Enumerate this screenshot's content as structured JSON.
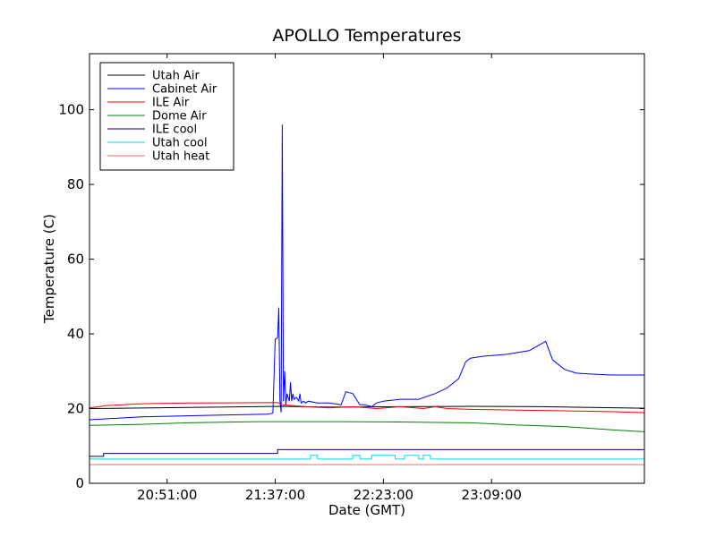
{
  "chart_data": {
    "type": "line",
    "title": "APOLLO Temperatures",
    "xlabel": "Date (GMT)",
    "ylabel": "Temperature (C)",
    "ylim": [
      0,
      115
    ],
    "xlim": [
      "20:18:00",
      "24:14:00"
    ],
    "xticks": [
      "20:51:00",
      "21:37:00",
      "22:23:00",
      "23:09:00"
    ],
    "yticks": [
      0,
      20,
      40,
      60,
      80,
      100
    ],
    "grid": false,
    "legend_position": "top-left",
    "series": [
      {
        "name": "Utah Air",
        "color": "#000000",
        "interp": "linear",
        "x": [
          "20:18:00",
          "21:00:00",
          "21:40:00",
          "22:00:00",
          "22:30:00",
          "23:00:00",
          "23:30:00",
          "24:14:00"
        ],
        "y": [
          20.0,
          20.3,
          20.6,
          20.4,
          20.5,
          20.6,
          20.5,
          20.1
        ]
      },
      {
        "name": "Cabinet Air",
        "color": "#0000ff",
        "interp": "linear",
        "x": [
          "20:18:00",
          "20:40:00",
          "21:10:00",
          "21:34:00",
          "21:36:00",
          "21:37:00",
          "21:38:00",
          "21:38:30",
          "21:39:00",
          "21:39:30",
          "21:40:00",
          "21:40:30",
          "21:41:00",
          "21:41:30",
          "21:42:00",
          "21:43:00",
          "21:43:30",
          "21:44:00",
          "21:44:30",
          "21:45:00",
          "21:46:00",
          "21:47:00",
          "21:47:30",
          "21:48:00",
          "21:49:00",
          "21:50:00",
          "21:51:00",
          "21:55:00",
          "22:00:00",
          "22:05:00",
          "22:07:00",
          "22:10:00",
          "22:13:00",
          "22:15:00",
          "22:18:00",
          "22:20:00",
          "22:23:00",
          "22:30:00",
          "22:38:00",
          "22:45:00",
          "22:50:00",
          "22:55:00",
          "22:58:00",
          "23:00:00",
          "23:05:00",
          "23:15:00",
          "23:25:00",
          "23:32:00",
          "23:35:00",
          "23:40:00",
          "23:45:00",
          "23:50:00",
          "24:00:00",
          "24:14:00"
        ],
        "y": [
          17.0,
          17.8,
          18.2,
          18.5,
          18.8,
          38.5,
          39.0,
          47.0,
          22.0,
          19.0,
          96.0,
          22.0,
          30.0,
          21.0,
          24.0,
          22.0,
          27.0,
          22.0,
          24.0,
          22.5,
          23.0,
          22.0,
          24.0,
          21.5,
          22.0,
          21.5,
          22.0,
          21.5,
          21.5,
          21.0,
          24.5,
          24.0,
          21.0,
          21.0,
          20.5,
          21.5,
          22.0,
          22.5,
          22.5,
          24.0,
          25.5,
          28.0,
          32.5,
          33.5,
          34.0,
          34.5,
          35.5,
          38.0,
          33.0,
          30.5,
          29.5,
          29.3,
          29.0,
          29.0
        ]
      },
      {
        "name": "ILE Air",
        "color": "#ff0000",
        "interp": "linear",
        "x": [
          "20:18:00",
          "20:25:00",
          "20:40:00",
          "21:00:00",
          "21:38:00",
          "21:40:00",
          "21:50:00",
          "22:00:00",
          "22:10:00",
          "22:20:00",
          "22:30:00",
          "22:40:00",
          "22:45:00",
          "22:50:00",
          "23:00:00",
          "23:20:00",
          "23:40:00",
          "24:00:00",
          "24:14:00"
        ],
        "y": [
          20.2,
          20.8,
          21.3,
          21.5,
          21.6,
          21.0,
          20.5,
          20.2,
          20.5,
          20.0,
          20.5,
          20.0,
          20.5,
          20.0,
          19.8,
          19.6,
          19.4,
          19.2,
          18.9
        ]
      },
      {
        "name": "Dome Air",
        "color": "#008000",
        "interp": "linear",
        "x": [
          "20:18:00",
          "20:40:00",
          "21:00:00",
          "21:30:00",
          "22:00:00",
          "22:30:00",
          "23:00:00",
          "23:20:00",
          "23:40:00",
          "24:00:00",
          "24:14:00"
        ],
        "y": [
          15.5,
          15.8,
          16.2,
          16.5,
          16.5,
          16.4,
          16.2,
          15.6,
          15.2,
          14.3,
          13.8
        ]
      },
      {
        "name": "ILE cool",
        "color": "#000080",
        "interp": "step",
        "x": [
          "20:18:00",
          "20:24:00",
          "21:38:00",
          "24:14:00"
        ],
        "y": [
          7.2,
          8.0,
          9.0,
          9.0
        ]
      },
      {
        "name": "Utah cool",
        "color": "#00dddd",
        "interp": "step",
        "x": [
          "20:18:00",
          "20:28:00",
          "21:52:00",
          "21:55:00",
          "22:10:00",
          "22:13:00",
          "22:18:00",
          "22:28:00",
          "22:32:00",
          "22:38:00",
          "22:40:00",
          "22:43:00",
          "24:14:00"
        ],
        "y": [
          6.5,
          6.5,
          7.5,
          6.5,
          7.5,
          6.5,
          7.5,
          6.5,
          7.5,
          6.5,
          7.5,
          6.5,
          6.5
        ]
      },
      {
        "name": "Utah heat",
        "color": "#ff6666",
        "interp": "linear",
        "x": [
          "20:18:00",
          "24:14:00"
        ],
        "y": [
          5.0,
          5.0
        ]
      }
    ]
  }
}
